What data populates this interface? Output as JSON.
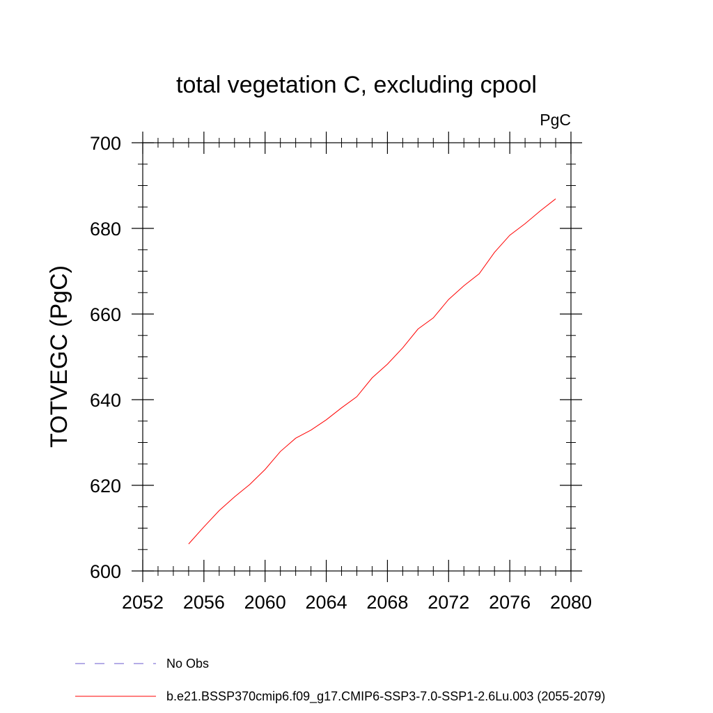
{
  "chart_data": {
    "type": "line",
    "title": "total vegetation C, excluding cpool",
    "units": "PgC",
    "ylabel": "TOTVEGC  (PgC)",
    "xlabel": "",
    "xlim": [
      2052,
      2080
    ],
    "ylim": [
      600,
      700
    ],
    "x_ticks": [
      2052,
      2056,
      2060,
      2064,
      2068,
      2072,
      2076,
      2080
    ],
    "y_ticks": [
      600,
      620,
      640,
      660,
      680,
      700
    ],
    "x_minor_step": 1,
    "y_minor_step": 5,
    "grid": false,
    "legend_position": "bottom",
    "series": [
      {
        "name": "b.e21.BSSP370cmip6.f09_g17.CMIP6-SSP3-7.0-SSP1-2.6Lu.003 (2055-2079)",
        "color": "#ff0000",
        "style": "solid",
        "x": [
          2055,
          2056,
          2057,
          2058,
          2059,
          2060,
          2061,
          2062,
          2063,
          2064,
          2065,
          2066,
          2067,
          2068,
          2069,
          2070,
          2071,
          2072,
          2073,
          2074,
          2075,
          2076,
          2077,
          2078,
          2079
        ],
        "y": [
          606.3,
          610.3,
          614.1,
          617.3,
          620.2,
          623.7,
          627.9,
          631.0,
          632.9,
          635.3,
          638.1,
          640.7,
          645.1,
          648.3,
          652.1,
          656.5,
          659.1,
          663.4,
          666.6,
          669.4,
          674.4,
          678.4,
          681.1,
          684.1,
          686.9
        ]
      }
    ],
    "legend": [
      {
        "label": "No Obs",
        "color": "#6a5acd",
        "style": "dashed"
      },
      {
        "label": "b.e21.BSSP370cmip6.f09_g17.CMIP6-SSP3-7.0-SSP1-2.6Lu.003 (2055-2079)",
        "color": "#ff0000",
        "style": "solid"
      }
    ]
  }
}
